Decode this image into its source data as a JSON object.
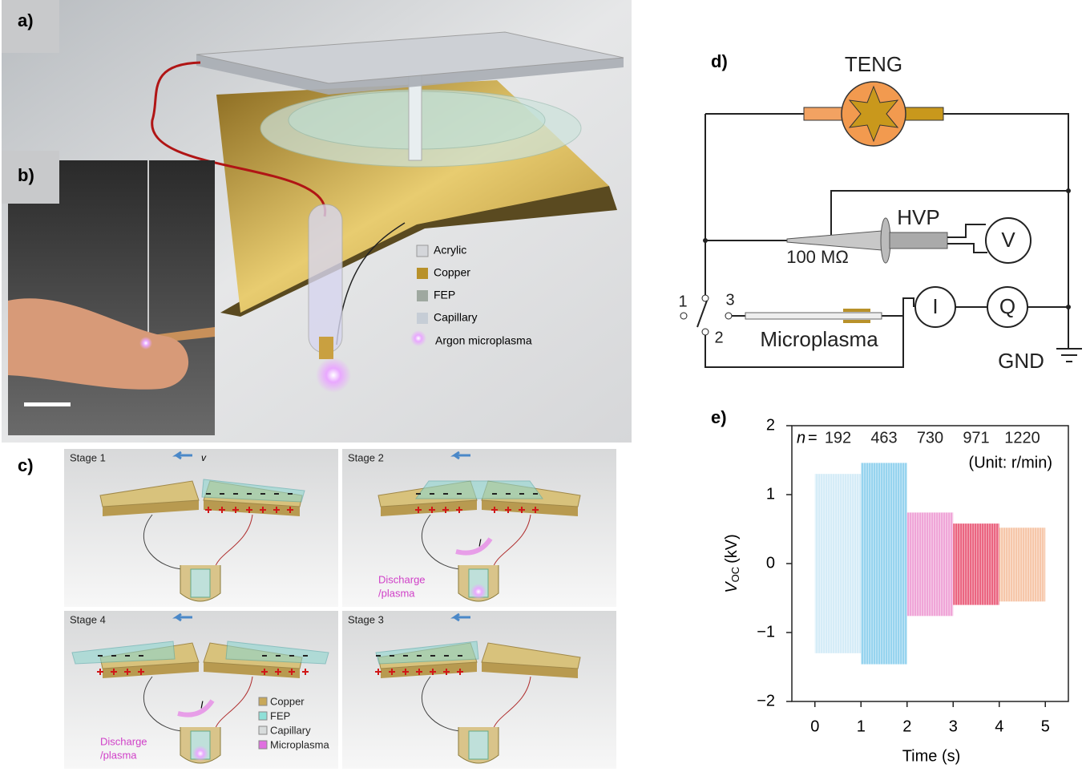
{
  "panel_a": {
    "label": "a)",
    "legend": [
      "Acrylic",
      "Copper",
      "FEP",
      "Capillary",
      "Argon microplasma"
    ]
  },
  "panel_b": {
    "label": "b)"
  },
  "panel_c": {
    "label": "c)",
    "stages": [
      {
        "title": "Stage 1",
        "velocity": "v"
      },
      {
        "title": "Stage 2",
        "current": "I",
        "discharge": [
          "Discharge",
          "/plasma"
        ]
      },
      {
        "title": "Stage 4",
        "current": "I",
        "discharge": [
          "Discharge",
          "/plasma"
        ]
      },
      {
        "title": "Stage 3"
      }
    ],
    "legend": [
      "Copper",
      "FEP",
      "Capillary",
      "Microplasma"
    ]
  },
  "panel_d": {
    "label": "d)",
    "teng": "TENG",
    "probe": "HVP",
    "voltmeter": "V",
    "resistor": "100 MΩ",
    "switch_positions": [
      "1",
      "2",
      "3"
    ],
    "microplasma": "Microplasma",
    "ammeter": "I",
    "charge_meter": "Q",
    "ground": "GND"
  },
  "chart_data": {
    "type": "oscillation",
    "panel_label": "e)",
    "x_label": "Time (s)",
    "y_label": {
      "symbol": "V",
      "subscript": "OC",
      "unit": "(kV)"
    },
    "speed_symbol": "n",
    "speed_equals": "=",
    "unit_note": "(Unit: r/min)",
    "xlim": [
      -0.5,
      5.5
    ],
    "ylim": [
      -2,
      2
    ],
    "xticks": [
      0,
      1,
      2,
      3,
      4,
      5
    ],
    "yticks": [
      {
        "value": -2,
        "label": "−2"
      },
      {
        "value": -1,
        "label": "−1"
      },
      0,
      1,
      2
    ],
    "series": [
      {
        "name": "192",
        "color": "#d3ebf7",
        "x": [
          0,
          1
        ],
        "values": [
          1.3,
          -1.3
        ]
      },
      {
        "name": "463",
        "color": "#92d2ee",
        "x": [
          1,
          2
        ],
        "values": [
          1.46,
          -1.46
        ]
      },
      {
        "name": "730",
        "color": "#efa2d6",
        "x": [
          2,
          3
        ],
        "values": [
          0.74,
          -0.76
        ]
      },
      {
        "name": "971",
        "color": "#ea5f7c",
        "x": [
          3,
          4
        ],
        "values": [
          0.58,
          -0.6
        ]
      },
      {
        "name": "1220",
        "color": "#f6c4a6",
        "x": [
          4,
          5
        ],
        "values": [
          0.52,
          -0.55
        ]
      }
    ]
  }
}
